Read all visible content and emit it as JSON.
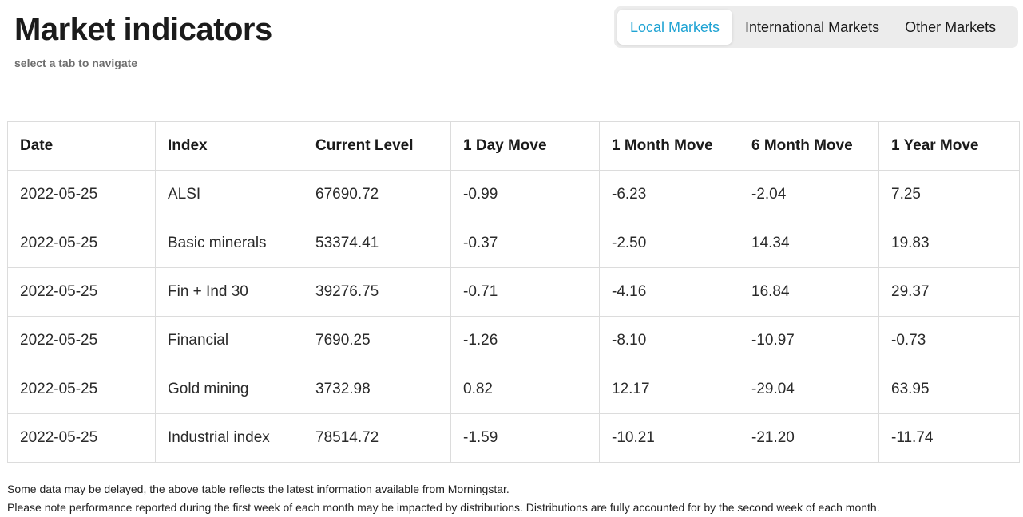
{
  "header": {
    "title": "Market indicators",
    "subtitle": "select a tab to navigate"
  },
  "tabs": [
    {
      "label": "Local Markets",
      "active": true
    },
    {
      "label": "International Markets",
      "active": false
    },
    {
      "label": "Other Markets",
      "active": false
    }
  ],
  "colors": {
    "accent": "#1fa3d3",
    "tab_bar_bg": "#ececec"
  },
  "table": {
    "columns": [
      "Date",
      "Index",
      "Current Level",
      "1 Day Move",
      "1 Month Move",
      "6 Month Move",
      "1 Year Move"
    ],
    "rows": [
      [
        "2022-05-25",
        "ALSI",
        "67690.72",
        "-0.99",
        "-6.23",
        "-2.04",
        "7.25"
      ],
      [
        "2022-05-25",
        "Basic minerals",
        "53374.41",
        "-0.37",
        "-2.50",
        "14.34",
        "19.83"
      ],
      [
        "2022-05-25",
        "Fin + Ind 30",
        "39276.75",
        "-0.71",
        "-4.16",
        "16.84",
        "29.37"
      ],
      [
        "2022-05-25",
        "Financial",
        "7690.25",
        "-1.26",
        "-8.10",
        "-10.97",
        "-0.73"
      ],
      [
        "2022-05-25",
        "Gold mining",
        "3732.98",
        "0.82",
        "12.17",
        "-29.04",
        "63.95"
      ],
      [
        "2022-05-25",
        "Industrial index",
        "78514.72",
        "-1.59",
        "-10.21",
        "-21.20",
        "-11.74"
      ]
    ]
  },
  "notes": [
    "Some data may be delayed, the above table reflects the latest information available from Morningstar.",
    "Please note performance reported during the first week of each month may be impacted by distributions. Distributions are fully accounted for by the second week of each month."
  ]
}
